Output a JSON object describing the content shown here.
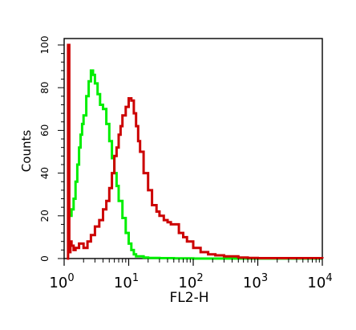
{
  "chart_data": {
    "type": "line",
    "title": "",
    "xlabel": "FL2-H",
    "ylabel": "Counts",
    "x_scale": "log",
    "xlim": [
      1,
      10000
    ],
    "ylim": [
      0,
      100
    ],
    "x_ticks": [
      {
        "base": "10",
        "exp": "0",
        "value": 1
      },
      {
        "base": "10",
        "exp": "1",
        "value": 10
      },
      {
        "base": "10",
        "exp": "2",
        "value": 100
      },
      {
        "base": "10",
        "exp": "3",
        "value": 1000
      },
      {
        "base": "10",
        "exp": "4",
        "value": 10000
      }
    ],
    "y_ticks": [
      "0",
      "20",
      "40",
      "60",
      "80",
      "100"
    ],
    "y_tick_values": [
      0,
      20,
      40,
      60,
      80,
      100
    ],
    "grid": false,
    "legend": "none",
    "series": [
      {
        "color": "#00ee00",
        "x": [
          1.2,
          1.3,
          1.4,
          1.5,
          1.6,
          1.7,
          1.8,
          1.9,
          2.0,
          2.2,
          2.4,
          2.6,
          2.8,
          3.0,
          3.3,
          3.6,
          4.0,
          4.5,
          5.0,
          5.5,
          6.0,
          6.5,
          7.0,
          8.0,
          9.0,
          10.0,
          11.0,
          12.0,
          13.0,
          15.0,
          17.0,
          20.0,
          30.0,
          50.0,
          100.0,
          300.0,
          10000.0
        ],
        "y": [
          20,
          23,
          28,
          36,
          44,
          52,
          58,
          63,
          67,
          76,
          83,
          88,
          86,
          82,
          77,
          72,
          70,
          63,
          55,
          47,
          40,
          34,
          27,
          19,
          12,
          7,
          4,
          2,
          1,
          1,
          0.5,
          0.3,
          0.2,
          0.1,
          0,
          0,
          0
        ]
      },
      {
        "color": "#cc0000",
        "x": [
          1.1,
          1.15,
          1.2,
          1.25,
          1.3,
          1.4,
          1.5,
          1.7,
          2.0,
          2.3,
          2.6,
          3.0,
          3.5,
          4.0,
          4.5,
          5.0,
          5.5,
          6.0,
          6.5,
          7.0,
          7.5,
          8.0,
          9.0,
          10.0,
          11.0,
          12.0,
          13.0,
          14.0,
          15.0,
          17.0,
          20.0,
          23.0,
          27.0,
          30.0,
          35.0,
          40.0,
          45.0,
          50.0,
          60.0,
          70.0,
          80.0,
          100.0,
          130.0,
          170.0,
          220.0,
          300.0,
          400.0,
          500.0,
          700.0,
          1000.0,
          10000.0
        ],
        "y": [
          0,
          100,
          3,
          8,
          6,
          4,
          5,
          7,
          5,
          8,
          11,
          15,
          18,
          23,
          27,
          33,
          40,
          48,
          52,
          58,
          62,
          67,
          71,
          75,
          74,
          68,
          62,
          55,
          50,
          40,
          32,
          25,
          22,
          20,
          18,
          17,
          16,
          16,
          12,
          10,
          8,
          5,
          3,
          2,
          1.5,
          1,
          1,
          0.5,
          0.3,
          0.2,
          0
        ]
      }
    ]
  }
}
